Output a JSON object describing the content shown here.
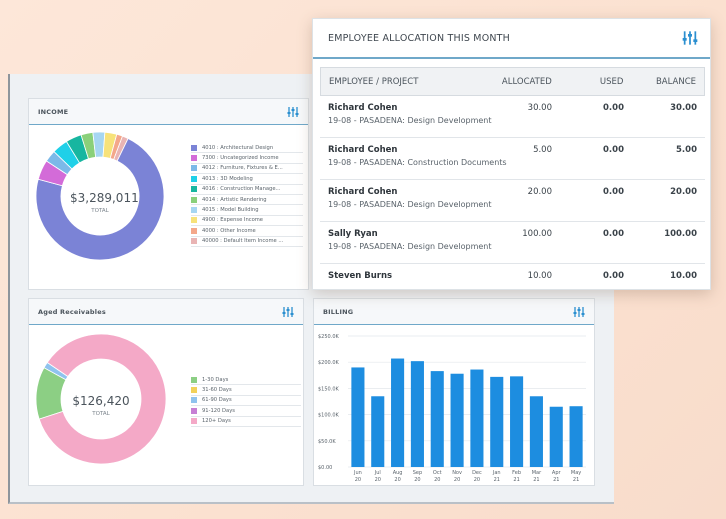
{
  "allocation": {
    "title": "EMPLOYEE ALLOCATION THIS MONTH",
    "columns": [
      "EMPLOYEE / PROJECT",
      "ALLOCATED",
      "USED",
      "BALANCE"
    ],
    "rows": [
      {
        "name": "Richard Cohen",
        "project": "19-08 - PASADENA: Design Development",
        "allocated": "30.00",
        "used": "0.00",
        "balance": "30.00"
      },
      {
        "name": "Richard Cohen",
        "project": "19-08 - PASADENA: Construction Documents",
        "allocated": "5.00",
        "used": "0.00",
        "balance": "5.00"
      },
      {
        "name": "Richard Cohen",
        "project": "19-08 - PASADENA: Design Development",
        "allocated": "20.00",
        "used": "0.00",
        "balance": "20.00"
      },
      {
        "name": "Sally Ryan",
        "project": "19-08 - PASADENA: Design Development",
        "allocated": "100.00",
        "used": "0.00",
        "balance": "100.00"
      },
      {
        "name": "Steven Burns",
        "project": "",
        "allocated": "10.00",
        "used": "0.00",
        "balance": "10.00"
      }
    ]
  },
  "income": {
    "title": "INCOME",
    "total": "$3,289,011",
    "total_label": "TOTAL",
    "legend": [
      {
        "label": "4010 : Architectural Design",
        "color": "#7b83d6"
      },
      {
        "label": "7300 : Uncategorized Income",
        "color": "#d36bd8"
      },
      {
        "label": "4012 : Furniture, Fixtures & E...",
        "color": "#7cb9e8"
      },
      {
        "label": "4013 : 3D Modeling",
        "color": "#1fd0e8"
      },
      {
        "label": "4016 : Construction Manage...",
        "color": "#17b6a0"
      },
      {
        "label": "4014 : Artistic Rendering",
        "color": "#8ad07a"
      },
      {
        "label": "4015 : Model Building",
        "color": "#a6d6f2"
      },
      {
        "label": "4900 : Expense Income",
        "color": "#f7e27a"
      },
      {
        "label": "4000 : Other Income",
        "color": "#f4a78a"
      },
      {
        "label": "40000 : Default Item Income ...",
        "color": "#e9b4b4"
      }
    ]
  },
  "aged": {
    "title": "Aged Receivables",
    "total": "$126,420",
    "total_label": "TOTAL",
    "legend": [
      {
        "label": "1-30 Days",
        "color": "#8ccf84"
      },
      {
        "label": "31-60 Days",
        "color": "#f2d15a"
      },
      {
        "label": "61-90 Days",
        "color": "#8fc3ee"
      },
      {
        "label": "91-120 Days",
        "color": "#c77fd4"
      },
      {
        "label": "120+ Days",
        "color": "#f4a9c7"
      }
    ]
  },
  "billing": {
    "title": "BILLING",
    "bar_color": "#1d8de0"
  },
  "chart_data": [
    {
      "type": "pie",
      "title": "INCOME",
      "labels": [
        "4010 : Architectural Design",
        "7300 : Uncategorized Income",
        "4012 : Furniture, Fixtures & E...",
        "4013 : 3D Modeling",
        "4016 : Construction Manage...",
        "4014 : Artistic Rendering",
        "4015 : Model Building",
        "4900 : Expense Income",
        "4000 : Other Income",
        "40000 : Default Item Income ..."
      ],
      "values": [
        72,
        5,
        3,
        4,
        4,
        3,
        3,
        3,
        1.5,
        1.5
      ],
      "colors": [
        "#7b83d6",
        "#d36bd8",
        "#7cb9e8",
        "#1fd0e8",
        "#17b6a0",
        "#8ad07a",
        "#a6d6f2",
        "#f7e27a",
        "#f4a78a",
        "#e9b4b4"
      ]
    },
    {
      "type": "pie",
      "title": "Aged Receivables",
      "labels": [
        "1-30 Days",
        "31-60 Days",
        "61-90 Days",
        "91-120 Days",
        "120+ Days"
      ],
      "values": [
        13,
        0,
        1.5,
        0,
        85.5
      ],
      "colors": [
        "#8ccf84",
        "#f2d15a",
        "#8fc3ee",
        "#c77fd4",
        "#f4a9c7"
      ]
    },
    {
      "type": "bar",
      "title": "BILLING",
      "categories": [
        "Jun\n20",
        "Jul\n20",
        "Aug\n20",
        "Sep\n20",
        "Oct\n20",
        "Nov\n20",
        "Dec\n20",
        "Jan\n21",
        "Feb\n21",
        "Mar\n21",
        "Apr\n21",
        "May\n21"
      ],
      "month_labels": [
        "Jun",
        "Jul",
        "Aug",
        "Sep",
        "Oct",
        "Nov",
        "Dec",
        "Jan",
        "Feb",
        "Mar",
        "Apr",
        "May"
      ],
      "year_labels": [
        "20",
        "20",
        "20",
        "20",
        "20",
        "20",
        "20",
        "21",
        "21",
        "21",
        "21",
        "21"
      ],
      "values": [
        190000,
        135000,
        207000,
        202000,
        183000,
        178000,
        186000,
        172000,
        173000,
        135000,
        115000,
        116000
      ],
      "yticks": [
        0,
        50000,
        100000,
        150000,
        200000,
        250000
      ],
      "ytick_labels": [
        "$0.00",
        "$50.0K",
        "$100.0K",
        "$150.0K",
        "$200.0K",
        "$250.0K"
      ],
      "ylim": [
        0,
        250000
      ]
    }
  ]
}
